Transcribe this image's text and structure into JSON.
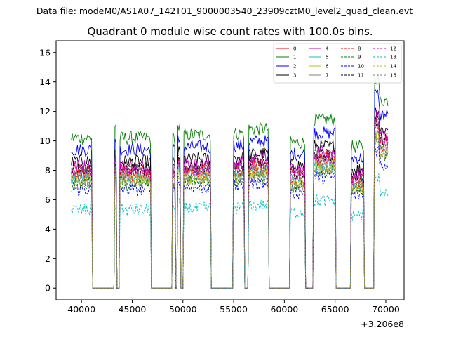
{
  "header": {
    "data_file": "Data file: modeM0/AS1A07_142T01_9000003540_23909cztM0_level2_quad_clean.evt"
  },
  "chart_data": {
    "type": "line",
    "title": "Quadrant 0 module wise count rates with 100.0s bins.",
    "xlabel": "",
    "ylabel": "",
    "x_offset_label": "+3.206e8",
    "xlim": [
      37500,
      71800
    ],
    "ylim": [
      -0.8,
      16.8
    ],
    "xticks": [
      40000,
      45000,
      50000,
      55000,
      60000,
      65000,
      70000
    ],
    "yticks": [
      0,
      2,
      4,
      6,
      8,
      10,
      12,
      14,
      16
    ],
    "bin_size_s": 100,
    "legend_position": "top-right",
    "active_intervals": [
      {
        "start": 39000,
        "end": 41000,
        "level": 1.0
      },
      {
        "start": 43300,
        "end": 43400,
        "level": 1.08
      },
      {
        "start": 43800,
        "end": 46800,
        "level": 1.0
      },
      {
        "start": 49000,
        "end": 49200,
        "level": 1.0
      },
      {
        "start": 49500,
        "end": 49700,
        "level": 1.07
      },
      {
        "start": 50100,
        "end": 52700,
        "level": 1.02
      },
      {
        "start": 55000,
        "end": 56000,
        "level": 1.03
      },
      {
        "start": 56500,
        "end": 58400,
        "level": 1.06
      },
      {
        "start": 60600,
        "end": 62000,
        "level": 0.97
      },
      {
        "start": 62900,
        "end": 65000,
        "level": 1.12
      },
      {
        "start": 66600,
        "end": 67800,
        "level": 0.94
      },
      {
        "start": 68900,
        "end": 70200,
        "level": 1.25
      }
    ],
    "series": [
      {
        "name": "0",
        "color": "#ff0000",
        "style": "solid",
        "level": 8.0
      },
      {
        "name": "1",
        "color": "#008000",
        "style": "solid",
        "level": 10.2
      },
      {
        "name": "2",
        "color": "#0000ff",
        "style": "solid",
        "level": 9.4
      },
      {
        "name": "3",
        "color": "#000000",
        "style": "solid",
        "level": 8.6
      },
      {
        "name": "4",
        "color": "#bf00bf",
        "style": "solid",
        "level": 8.3
      },
      {
        "name": "5",
        "color": "#17becf",
        "style": "solid",
        "level": 7.5
      },
      {
        "name": "6",
        "color": "#bcbd22",
        "style": "solid",
        "level": 7.3
      },
      {
        "name": "7",
        "color": "#7f7f7f",
        "style": "solid",
        "level": 7.8
      },
      {
        "name": "8",
        "color": "#ff0000",
        "style": "dashed",
        "level": 7.7
      },
      {
        "name": "9",
        "color": "#008000",
        "style": "dashed",
        "level": 7.1
      },
      {
        "name": "10",
        "color": "#0000ff",
        "style": "dashed",
        "level": 6.7
      },
      {
        "name": "11",
        "color": "#000000",
        "style": "dashed",
        "level": 8.1
      },
      {
        "name": "12",
        "color": "#bf00bf",
        "style": "dashed",
        "level": 7.9
      },
      {
        "name": "13",
        "color": "#00bfbf",
        "style": "dashed",
        "level": 5.3
      },
      {
        "name": "14",
        "color": "#bcbd22",
        "style": "dashed",
        "level": 7.4
      },
      {
        "name": "15",
        "color": "#7f7f7f",
        "style": "dashed",
        "level": 7.2
      }
    ]
  }
}
